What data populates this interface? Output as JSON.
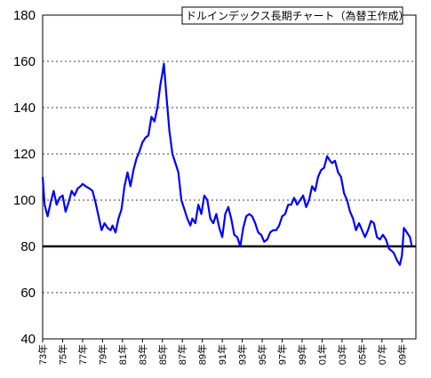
{
  "chart_data": {
    "type": "line",
    "title": "ドルインデックス長期チャート（為替王作成）",
    "xlabel": "",
    "ylabel": "",
    "ylim": [
      40,
      180
    ],
    "yticks": [
      40,
      60,
      80,
      100,
      120,
      140,
      160,
      180
    ],
    "xlim": [
      1973,
      2010.4
    ],
    "xticks": [
      "73年",
      "75年",
      "77年",
      "79年",
      "81年",
      "83年",
      "85年",
      "87年",
      "89年",
      "91年",
      "93年",
      "95年",
      "97年",
      "99年",
      "01年",
      "03年",
      "05年",
      "07年",
      "09年"
    ],
    "grid": "horizontal dotted",
    "reference_line": 80,
    "series": [
      {
        "color": "#0000ff",
        "x": [
          1973.0,
          1973.2,
          1973.5,
          1973.8,
          1974.1,
          1974.4,
          1974.7,
          1975.0,
          1975.3,
          1975.6,
          1975.9,
          1976.2,
          1976.5,
          1976.8,
          1977.0,
          1977.3,
          1977.7,
          1978.0,
          1978.3,
          1978.6,
          1978.9,
          1979.2,
          1979.5,
          1979.8,
          1980.0,
          1980.3,
          1980.6,
          1980.9,
          1981.2,
          1981.5,
          1981.8,
          1982.1,
          1982.4,
          1982.7,
          1983.0,
          1983.3,
          1983.6,
          1983.9,
          1984.2,
          1984.5,
          1984.8,
          1985.0,
          1985.15,
          1985.4,
          1985.7,
          1986.0,
          1986.3,
          1986.6,
          1986.9,
          1987.2,
          1987.5,
          1987.8,
          1988.0,
          1988.3,
          1988.6,
          1988.9,
          1989.2,
          1989.5,
          1989.8,
          1990.1,
          1990.4,
          1990.7,
          1991.0,
          1991.3,
          1991.6,
          1991.9,
          1992.2,
          1992.5,
          1992.8,
          1993.1,
          1993.4,
          1993.7,
          1994.0,
          1994.3,
          1994.6,
          1994.9,
          1995.2,
          1995.5,
          1995.8,
          1996.1,
          1996.4,
          1996.7,
          1997.0,
          1997.3,
          1997.6,
          1997.9,
          1998.2,
          1998.5,
          1998.8,
          1999.1,
          1999.4,
          1999.7,
          2000.0,
          2000.3,
          2000.6,
          2000.9,
          2001.2,
          2001.5,
          2001.8,
          2002.0,
          2002.3,
          2002.6,
          2002.9,
          2003.2,
          2003.5,
          2003.8,
          2004.1,
          2004.4,
          2004.7,
          2005.0,
          2005.3,
          2005.6,
          2005.9,
          2006.2,
          2006.5,
          2006.8,
          2007.1,
          2007.4,
          2007.7,
          2008.0,
          2008.2,
          2008.5,
          2008.8,
          2009.0,
          2009.2,
          2009.5,
          2009.8,
          2010.0
        ],
        "values": [
          110,
          98,
          93,
          99,
          104,
          98,
          101,
          102,
          95,
          99,
          104,
          102,
          105,
          106,
          107,
          106,
          105,
          104,
          99,
          93,
          87,
          90,
          88,
          87,
          89,
          86,
          92,
          96,
          106,
          112,
          106,
          113,
          118,
          121,
          125,
          127,
          128,
          136,
          134,
          140,
          150,
          155,
          159,
          145,
          130,
          120,
          116,
          112,
          100,
          96,
          92,
          89,
          92,
          90,
          98,
          94,
          102,
          100,
          92,
          90,
          94,
          88,
          84,
          94,
          97,
          92,
          85,
          84,
          80,
          88,
          93,
          94,
          93,
          90,
          86,
          85,
          82,
          83,
          86,
          87,
          87,
          89,
          93,
          94,
          98,
          98,
          101,
          98,
          100,
          102,
          97,
          100,
          106,
          104,
          110,
          113,
          114,
          119,
          117,
          116,
          117,
          112,
          110,
          103,
          100,
          95,
          92,
          87,
          90,
          87,
          84,
          87,
          91,
          90,
          84,
          83,
          85,
          83,
          79,
          78,
          77,
          74,
          72,
          76,
          88,
          86,
          84,
          80
        ]
      }
    ]
  }
}
